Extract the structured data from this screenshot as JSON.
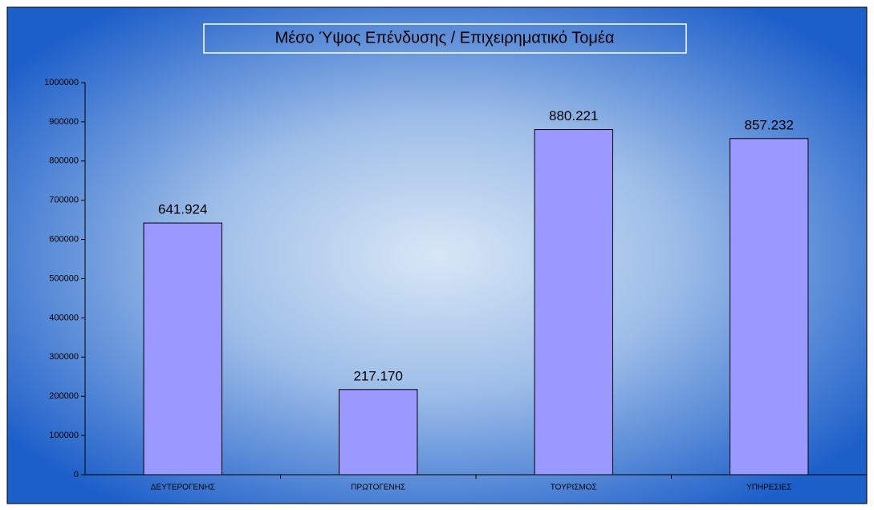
{
  "chart_data": {
    "type": "bar",
    "title": "Μέσο Ύψος Επένδυσης / Επιχειρηματικό Τομέα",
    "categories": [
      "ΔΕΥΤΕΡΟΓΕΝΗΣ",
      "ΠΡΩΤΟΓΕΝΗΣ",
      "ΤΟΥΡΙΣΜΟΣ",
      "ΥΠΗΡΕΣΙΕΣ"
    ],
    "values": [
      641924,
      217170,
      880221,
      857232
    ],
    "value_labels": [
      "641.924",
      "217.170",
      "880.221",
      "857.232"
    ],
    "color": "#9999ff",
    "ylim": [
      0,
      1000000
    ],
    "yticks": [
      0,
      100000,
      200000,
      300000,
      400000,
      500000,
      600000,
      700000,
      800000,
      900000,
      1000000
    ],
    "grid": false
  }
}
